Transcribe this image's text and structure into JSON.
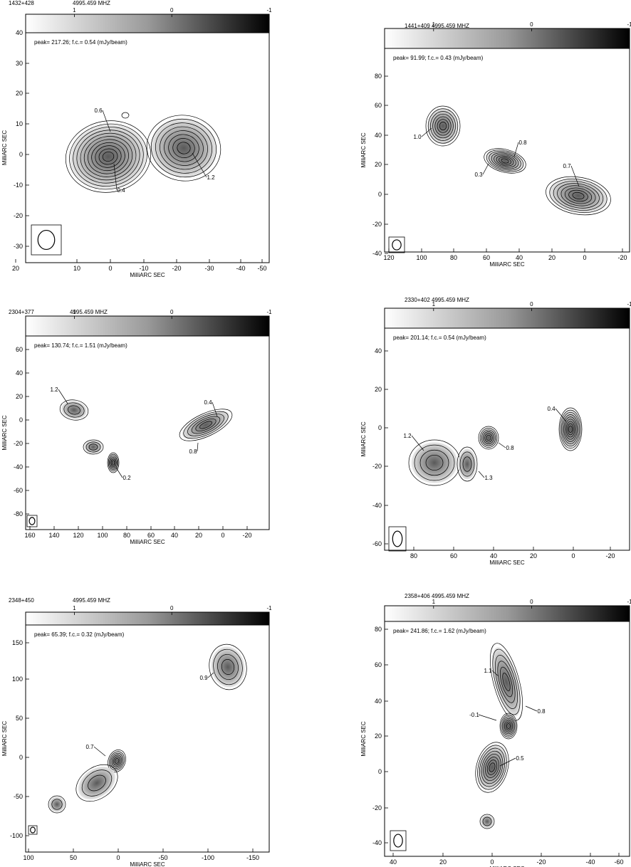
{
  "panels": [
    {
      "source": "1432+428",
      "freq": "4995.459 MHZ",
      "scale_labels": [
        "1",
        "0",
        "-1"
      ],
      "peak_text": "peak= 217.26;   f.c.= 0.54  (mJy/beam)",
      "xlabel": "MilliARC SEC",
      "ylabel": "MilliARC SEC",
      "xticks": [
        "20",
        "10",
        "0",
        "-10",
        "-20",
        "-30",
        "-40",
        "-50"
      ],
      "yticks": [
        "40",
        "30",
        "20",
        "10",
        "0",
        "-10",
        "-20",
        "-30"
      ],
      "annotations": [
        "0.6",
        "0.4",
        "1.2"
      ]
    },
    {
      "source": "1441+409",
      "freq": "4995.459 MHZ",
      "scale_labels": [
        "1",
        "0",
        "-1"
      ],
      "peak_text": "peak= 91.99;   f.c.= 0.43  (mJy/beam)",
      "xlabel": "MilliARC SEC",
      "ylabel": "MilliARC SEC",
      "xticks": [
        "120",
        "100",
        "80",
        "60",
        "40",
        "20",
        "0",
        "-20"
      ],
      "yticks": [
        "80",
        "60",
        "40",
        "20",
        "0",
        "-20",
        "-40"
      ],
      "annotations": [
        "1.0",
        "0.8",
        "0.3",
        "0.7"
      ]
    },
    {
      "source": "2304+377",
      "freq": "4995.459 MHZ",
      "scale_labels": [
        "1",
        "0",
        "-1"
      ],
      "peak_text": "peak= 130.74;   f.c.= 1.51  (mJy/beam)",
      "xlabel": "MilliARC SEC",
      "ylabel": "MilliARC SEC",
      "xticks": [
        "160",
        "140",
        "120",
        "100",
        "80",
        "60",
        "40",
        "20",
        "0",
        "-20"
      ],
      "yticks": [
        "60",
        "40",
        "20",
        "0",
        "-20",
        "-40",
        "-60",
        "-80"
      ],
      "annotations": [
        "1.2",
        "0.4",
        "0.8",
        "0.2"
      ]
    },
    {
      "source": "2330+402",
      "freq": "4995.459 MHZ",
      "scale_labels": [
        "1",
        "0",
        "-1"
      ],
      "peak_text": "peak= 201.14;   f.c.= 0.54  (mJy/beam)",
      "xlabel": "MilliARC SEC",
      "ylabel": "MilliARC SEC",
      "xticks": [
        "80",
        "60",
        "40",
        "20",
        "0",
        "-20"
      ],
      "yticks": [
        "40",
        "20",
        "0",
        "-20",
        "-40",
        "-60"
      ],
      "annotations": [
        "0.4",
        "1.2",
        "0.8",
        "1.3"
      ]
    },
    {
      "source": "2348+450",
      "freq": "4995.459 MHZ",
      "scale_labels": [
        "1",
        "0",
        "-1"
      ],
      "peak_text": "peak= 65.39;   f.c.= 0.32  (mJy/beam)",
      "xlabel": "MilliARC SEC",
      "ylabel": "MilliARC SEC",
      "xticks": [
        "100",
        "50",
        "0",
        "-50",
        "-100",
        "-150"
      ],
      "yticks": [
        "150",
        "100",
        "50",
        "0",
        "-50",
        "-100"
      ],
      "annotations": [
        "0.9",
        "0.7"
      ]
    },
    {
      "source": "2358+406",
      "freq": "4995.459 MHZ",
      "scale_labels": [
        "1",
        "0",
        "-1"
      ],
      "peak_text": "peak= 241.86;   f.c.= 1.62  (mJy/beam)",
      "xlabel": "MilliARC SEC",
      "ylabel": "MilliARC SEC",
      "xticks": [
        "40",
        "20",
        "0",
        "-20",
        "-40",
        "-60"
      ],
      "yticks": [
        "80",
        "60",
        "40",
        "20",
        "0",
        "-20",
        "-40"
      ],
      "annotations": [
        "1.1",
        "0.8",
        "-0.1",
        "0.5"
      ]
    }
  ]
}
